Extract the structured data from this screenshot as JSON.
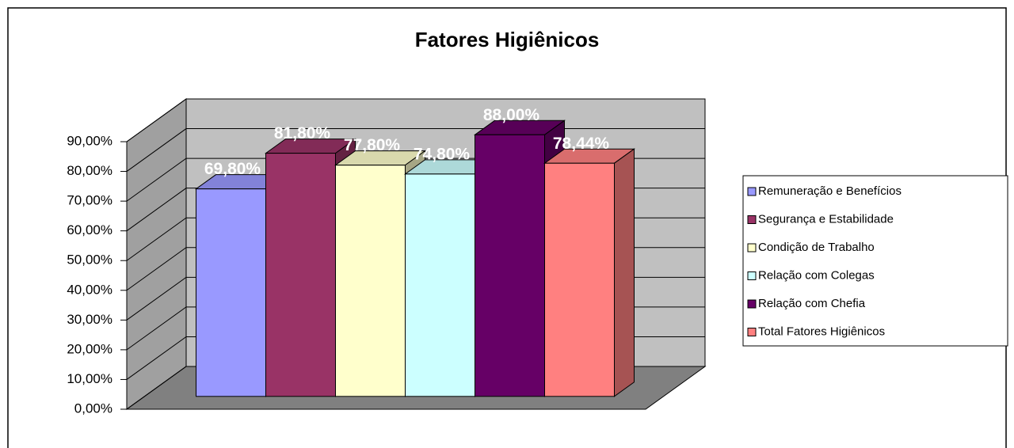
{
  "chart_data": {
    "type": "bar3d",
    "title": "Fatores Higiênicos",
    "series": [
      {
        "name": "Remuneração e Benefícios",
        "color": "#9999FF",
        "values": [
          69.8
        ],
        "value_labels": [
          "69,80%"
        ]
      },
      {
        "name": "Segurança e Estabilidade",
        "color": "#993366",
        "values": [
          81.8
        ],
        "value_labels": [
          "81,80%"
        ]
      },
      {
        "name": "Condição de Trabalho",
        "color": "#FFFFCC",
        "values": [
          77.8
        ],
        "value_labels": [
          "77,80%"
        ]
      },
      {
        "name": "Relação com Colegas",
        "color": "#CCFFFF",
        "values": [
          74.8
        ],
        "value_labels": [
          "74,80%"
        ]
      },
      {
        "name": "Relação com Chefia",
        "color": "#660066",
        "values": [
          88
        ],
        "value_labels": [
          "88,00%"
        ]
      },
      {
        "name": "Total Fatores Higiênicos",
        "color": "#FF8080",
        "values": [
          78.44
        ],
        "value_labels": [
          "78,44%"
        ]
      }
    ],
    "ylim": [
      0,
      90
    ],
    "yticks": [
      {
        "value": 0,
        "label": "0,00%"
      },
      {
        "value": 10,
        "label": "10,00%"
      },
      {
        "value": 20,
        "label": "20,00%"
      },
      {
        "value": 30,
        "label": "30,00%"
      },
      {
        "value": 40,
        "label": "40,00%"
      },
      {
        "value": 50,
        "label": "50,00%"
      },
      {
        "value": 60,
        "label": "60,00%"
      },
      {
        "value": 70,
        "label": "70,00%"
      },
      {
        "value": 80,
        "label": "80,00%"
      },
      {
        "value": 90,
        "label": "90,00%"
      }
    ],
    "grid": true,
    "legend": "right"
  }
}
